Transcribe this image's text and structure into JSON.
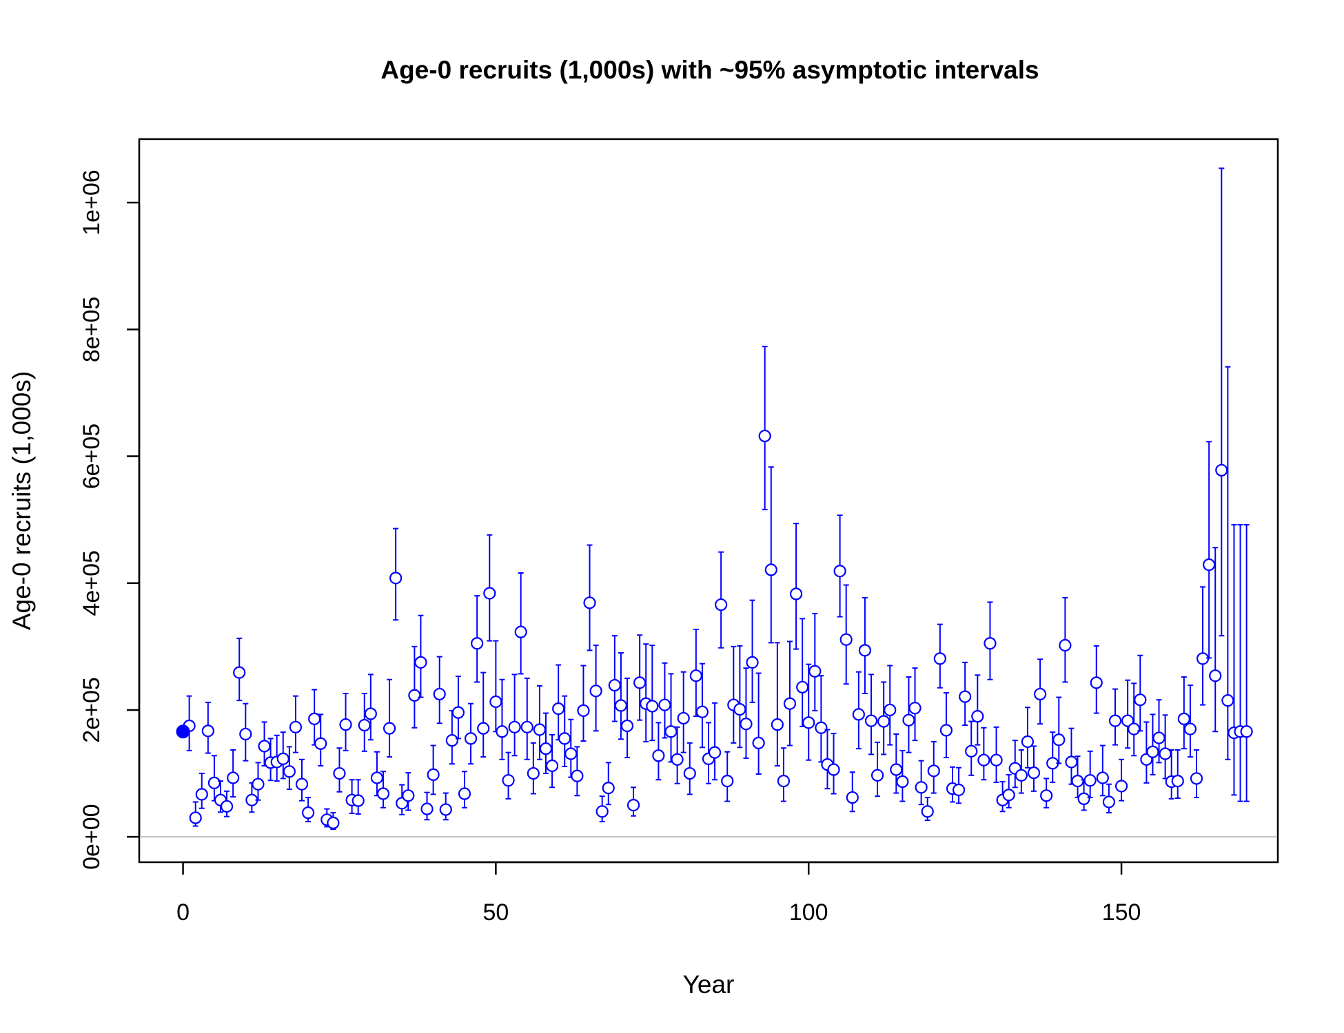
{
  "chart_data": {
    "type": "scatter",
    "title": "Age-0 recruits (1,000s) with ~95% asymptotic intervals",
    "xlabel": "Year",
    "ylabel": "Age-0 recruits (1,000s)",
    "xlim": [
      -7,
      175
    ],
    "ylim": [
      -40000,
      1100000
    ],
    "xticks": [
      0,
      50,
      100,
      150
    ],
    "xtick_labels": [
      "0",
      "50",
      "100",
      "150"
    ],
    "yticks": [
      0,
      200000,
      400000,
      600000,
      800000,
      1000000
    ],
    "ytick_labels": [
      "0e+00",
      "2e+05",
      "4e+05",
      "6e+05",
      "8e+05",
      "1e+06"
    ],
    "reference_line_y": 0,
    "colors": {
      "series": "#0000ff",
      "reference": "#bebebe",
      "frame": "#000000"
    },
    "virgin": {
      "year": 0,
      "value": 166000
    },
    "series": [
      {
        "x": [
          1,
          2,
          3,
          4,
          5,
          6,
          7,
          8,
          9,
          10,
          11,
          12,
          13,
          14,
          15,
          16,
          17,
          18,
          19,
          20,
          21,
          22,
          23,
          24,
          25,
          26,
          27,
          28,
          29,
          30,
          31,
          32,
          33,
          34,
          35,
          36,
          37,
          38,
          39,
          40,
          41,
          42,
          43,
          44,
          45,
          46,
          47,
          48,
          49,
          50,
          51,
          52,
          53,
          54,
          55,
          56,
          57,
          58,
          59,
          60,
          61,
          62,
          63,
          64,
          65,
          66,
          67,
          68,
          69,
          70,
          71,
          72,
          73,
          74,
          75,
          76,
          77,
          78,
          79,
          80,
          81,
          82,
          83,
          84,
          85,
          86,
          87,
          88,
          89,
          90,
          91,
          92,
          93,
          94,
          95,
          96,
          97,
          98,
          99,
          100,
          101,
          102,
          103,
          104,
          105,
          106,
          107,
          108,
          109,
          110,
          111,
          112,
          113,
          114,
          115,
          116,
          117,
          118,
          119,
          120,
          121,
          122,
          123,
          124,
          125,
          126,
          127,
          128,
          129,
          130,
          131,
          132,
          133,
          134,
          135,
          136,
          137,
          138,
          139,
          140,
          141,
          142,
          143,
          144,
          145,
          146,
          147,
          148,
          149,
          150,
          151,
          152,
          153,
          154,
          155,
          156,
          157,
          158,
          159,
          160,
          161,
          162,
          163,
          164,
          165,
          166,
          167,
          168,
          169,
          170
        ],
        "y": [
          175000,
          30000,
          67000,
          167000,
          85000,
          58000,
          48000,
          93000,
          259000,
          162000,
          58000,
          83000,
          143000,
          117000,
          118000,
          123000,
          103000,
          173000,
          83000,
          38000,
          186000,
          147000,
          27000,
          22000,
          100000,
          177000,
          58000,
          57000,
          176000,
          194000,
          93000,
          68000,
          171000,
          408000,
          53000,
          65000,
          223000,
          275000,
          44000,
          98000,
          225000,
          43000,
          152000,
          196000,
          68000,
          155000,
          305000,
          171000,
          384000,
          213000,
          166000,
          89000,
          173000,
          323000,
          173000,
          100000,
          169000,
          139000,
          112000,
          202000,
          155000,
          131000,
          96000,
          199000,
          369000,
          230000,
          40000,
          77000,
          239000,
          207000,
          175000,
          50000,
          243000,
          210000,
          206000,
          128000,
          208000,
          166000,
          122000,
          187000,
          100000,
          254000,
          197000,
          123000,
          133000,
          366000,
          88000,
          208000,
          201000,
          178000,
          275000,
          148000,
          632000,
          421000,
          177000,
          88000,
          210000,
          383000,
          236000,
          180000,
          261000,
          172000,
          114000,
          106000,
          419000,
          311000,
          62000,
          193000,
          294000,
          183000,
          97000,
          182000,
          200000,
          106000,
          87000,
          184000,
          203000,
          78000,
          40000,
          104000,
          281000,
          168000,
          76000,
          74000,
          221000,
          135000,
          190000,
          121000,
          305000,
          121000,
          58000,
          66000,
          108000,
          97000,
          150000,
          101000,
          225000,
          65000,
          116000,
          153000,
          302000,
          118000,
          88000,
          60000,
          89000,
          243000,
          93000,
          55000,
          183000,
          80000,
          183000,
          170000,
          216000,
          122000,
          134000,
          156000,
          131000,
          87000,
          88000,
          186000,
          170000,
          92000,
          281000,
          429000,
          254000,
          578000,
          215000,
          164000,
          166000,
          166000
        ],
        "lo": [
          136000,
          17000,
          45000,
          132000,
          57000,
          39000,
          32000,
          63000,
          215000,
          120000,
          39000,
          58000,
          112000,
          89000,
          88000,
          92000,
          75000,
          133000,
          57000,
          24000,
          145000,
          112000,
          16000,
          12000,
          71000,
          136000,
          37000,
          36000,
          135000,
          153000,
          65000,
          46000,
          126000,
          342000,
          35000,
          42000,
          172000,
          220000,
          27000,
          67000,
          179000,
          27000,
          115000,
          155000,
          46000,
          115000,
          244000,
          126000,
          309000,
          166000,
          122000,
          60000,
          128000,
          257000,
          122000,
          68000,
          122000,
          100000,
          78000,
          153000,
          111000,
          94000,
          65000,
          151000,
          294000,
          167000,
          24000,
          51000,
          182000,
          154000,
          125000,
          33000,
          184000,
          150000,
          152000,
          90000,
          156000,
          118000,
          84000,
          133000,
          67000,
          190000,
          141000,
          84000,
          90000,
          298000,
          56000,
          148000,
          141000,
          124000,
          212000,
          99000,
          516000,
          306000,
          112000,
          56000,
          144000,
          296000,
          174000,
          121000,
          199000,
          118000,
          76000,
          68000,
          347000,
          241000,
          40000,
          139000,
          226000,
          130000,
          64000,
          130000,
          145000,
          69000,
          56000,
          133000,
          152000,
          51000,
          26000,
          69000,
          235000,
          125000,
          55000,
          53000,
          176000,
          97000,
          145000,
          90000,
          248000,
          86000,
          40000,
          46000,
          78000,
          69000,
          109000,
          72000,
          178000,
          46000,
          86000,
          116000,
          244000,
          83000,
          62000,
          42000,
          62000,
          195000,
          65000,
          38000,
          145000,
          57000,
          140000,
          128000,
          167000,
          85000,
          98000,
          117000,
          92000,
          60000,
          61000,
          139000,
          126000,
          62000,
          208000,
          282000,
          166000,
          317000,
          122000,
          66000,
          56000,
          56000
        ],
        "hi": [
          222000,
          55000,
          100000,
          212000,
          128000,
          88000,
          72000,
          137000,
          313000,
          210000,
          85000,
          117000,
          181000,
          155000,
          160000,
          165000,
          142000,
          222000,
          122000,
          62000,
          232000,
          193000,
          44000,
          38000,
          140000,
          226000,
          90000,
          90000,
          226000,
          256000,
          134000,
          103000,
          248000,
          486000,
          82000,
          101000,
          300000,
          349000,
          70000,
          144000,
          284000,
          69000,
          199000,
          253000,
          103000,
          210000,
          380000,
          259000,
          476000,
          309000,
          248000,
          133000,
          256000,
          416000,
          250000,
          148000,
          238000,
          195000,
          161000,
          271000,
          222000,
          185000,
          142000,
          270000,
          460000,
          302000,
          64000,
          117000,
          317000,
          290000,
          250000,
          78000,
          318000,
          304000,
          302000,
          180000,
          274000,
          257000,
          173000,
          260000,
          148000,
          327000,
          273000,
          180000,
          211000,
          449000,
          134000,
          300000,
          301000,
          266000,
          373000,
          258000,
          773000,
          583000,
          306000,
          140000,
          308000,
          494000,
          344000,
          272000,
          352000,
          254000,
          169000,
          163000,
          507000,
          397000,
          102000,
          260000,
          377000,
          256000,
          149000,
          244000,
          270000,
          162000,
          136000,
          252000,
          266000,
          120000,
          62000,
          150000,
          335000,
          227000,
          110000,
          109000,
          275000,
          182000,
          255000,
          172000,
          370000,
          173000,
          87000,
          98000,
          152000,
          137000,
          204000,
          143000,
          280000,
          92000,
          165000,
          220000,
          377000,
          171000,
          127000,
          90000,
          135000,
          301000,
          144000,
          83000,
          233000,
          122000,
          247000,
          242000,
          286000,
          181000,
          193000,
          216000,
          192000,
          137000,
          137000,
          252000,
          239000,
          137000,
          394000,
          623000,
          456000,
          1054000,
          741000,
          492000,
          492000,
          492000
        ]
      }
    ]
  }
}
